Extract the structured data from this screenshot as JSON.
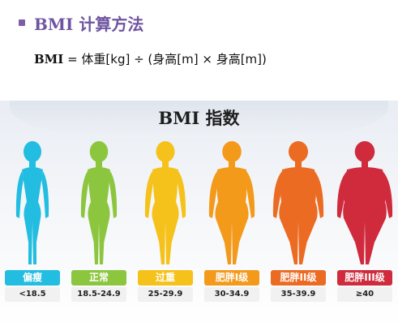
{
  "header": {
    "title": "BMI 计算方法",
    "formula_label": "BMI",
    "formula_rest": " = 体重[kg] ÷ (身高[m] × 身高[m])"
  },
  "banner": {
    "title": "BMI 指数"
  },
  "categories": [
    {
      "label": "偏瘦",
      "range": "<18.5",
      "color": "#22bde0",
      "shape": "thin"
    },
    {
      "label": "正常",
      "range": "18.5-24.9",
      "color": "#8cc63f",
      "shape": "normal"
    },
    {
      "label": "过重",
      "range": "25-29.9",
      "color": "#f5c21b",
      "shape": "over"
    },
    {
      "label": "肥胖I级",
      "range": "30-34.9",
      "color": "#f39a1b",
      "shape": "obese1"
    },
    {
      "label": "肥胖II级",
      "range": "35-39.9",
      "color": "#ec6b22",
      "shape": "obese2"
    },
    {
      "label": "肥胖III级",
      "range": "≥40",
      "color": "#cf2b3c",
      "shape": "obese3"
    }
  ]
}
